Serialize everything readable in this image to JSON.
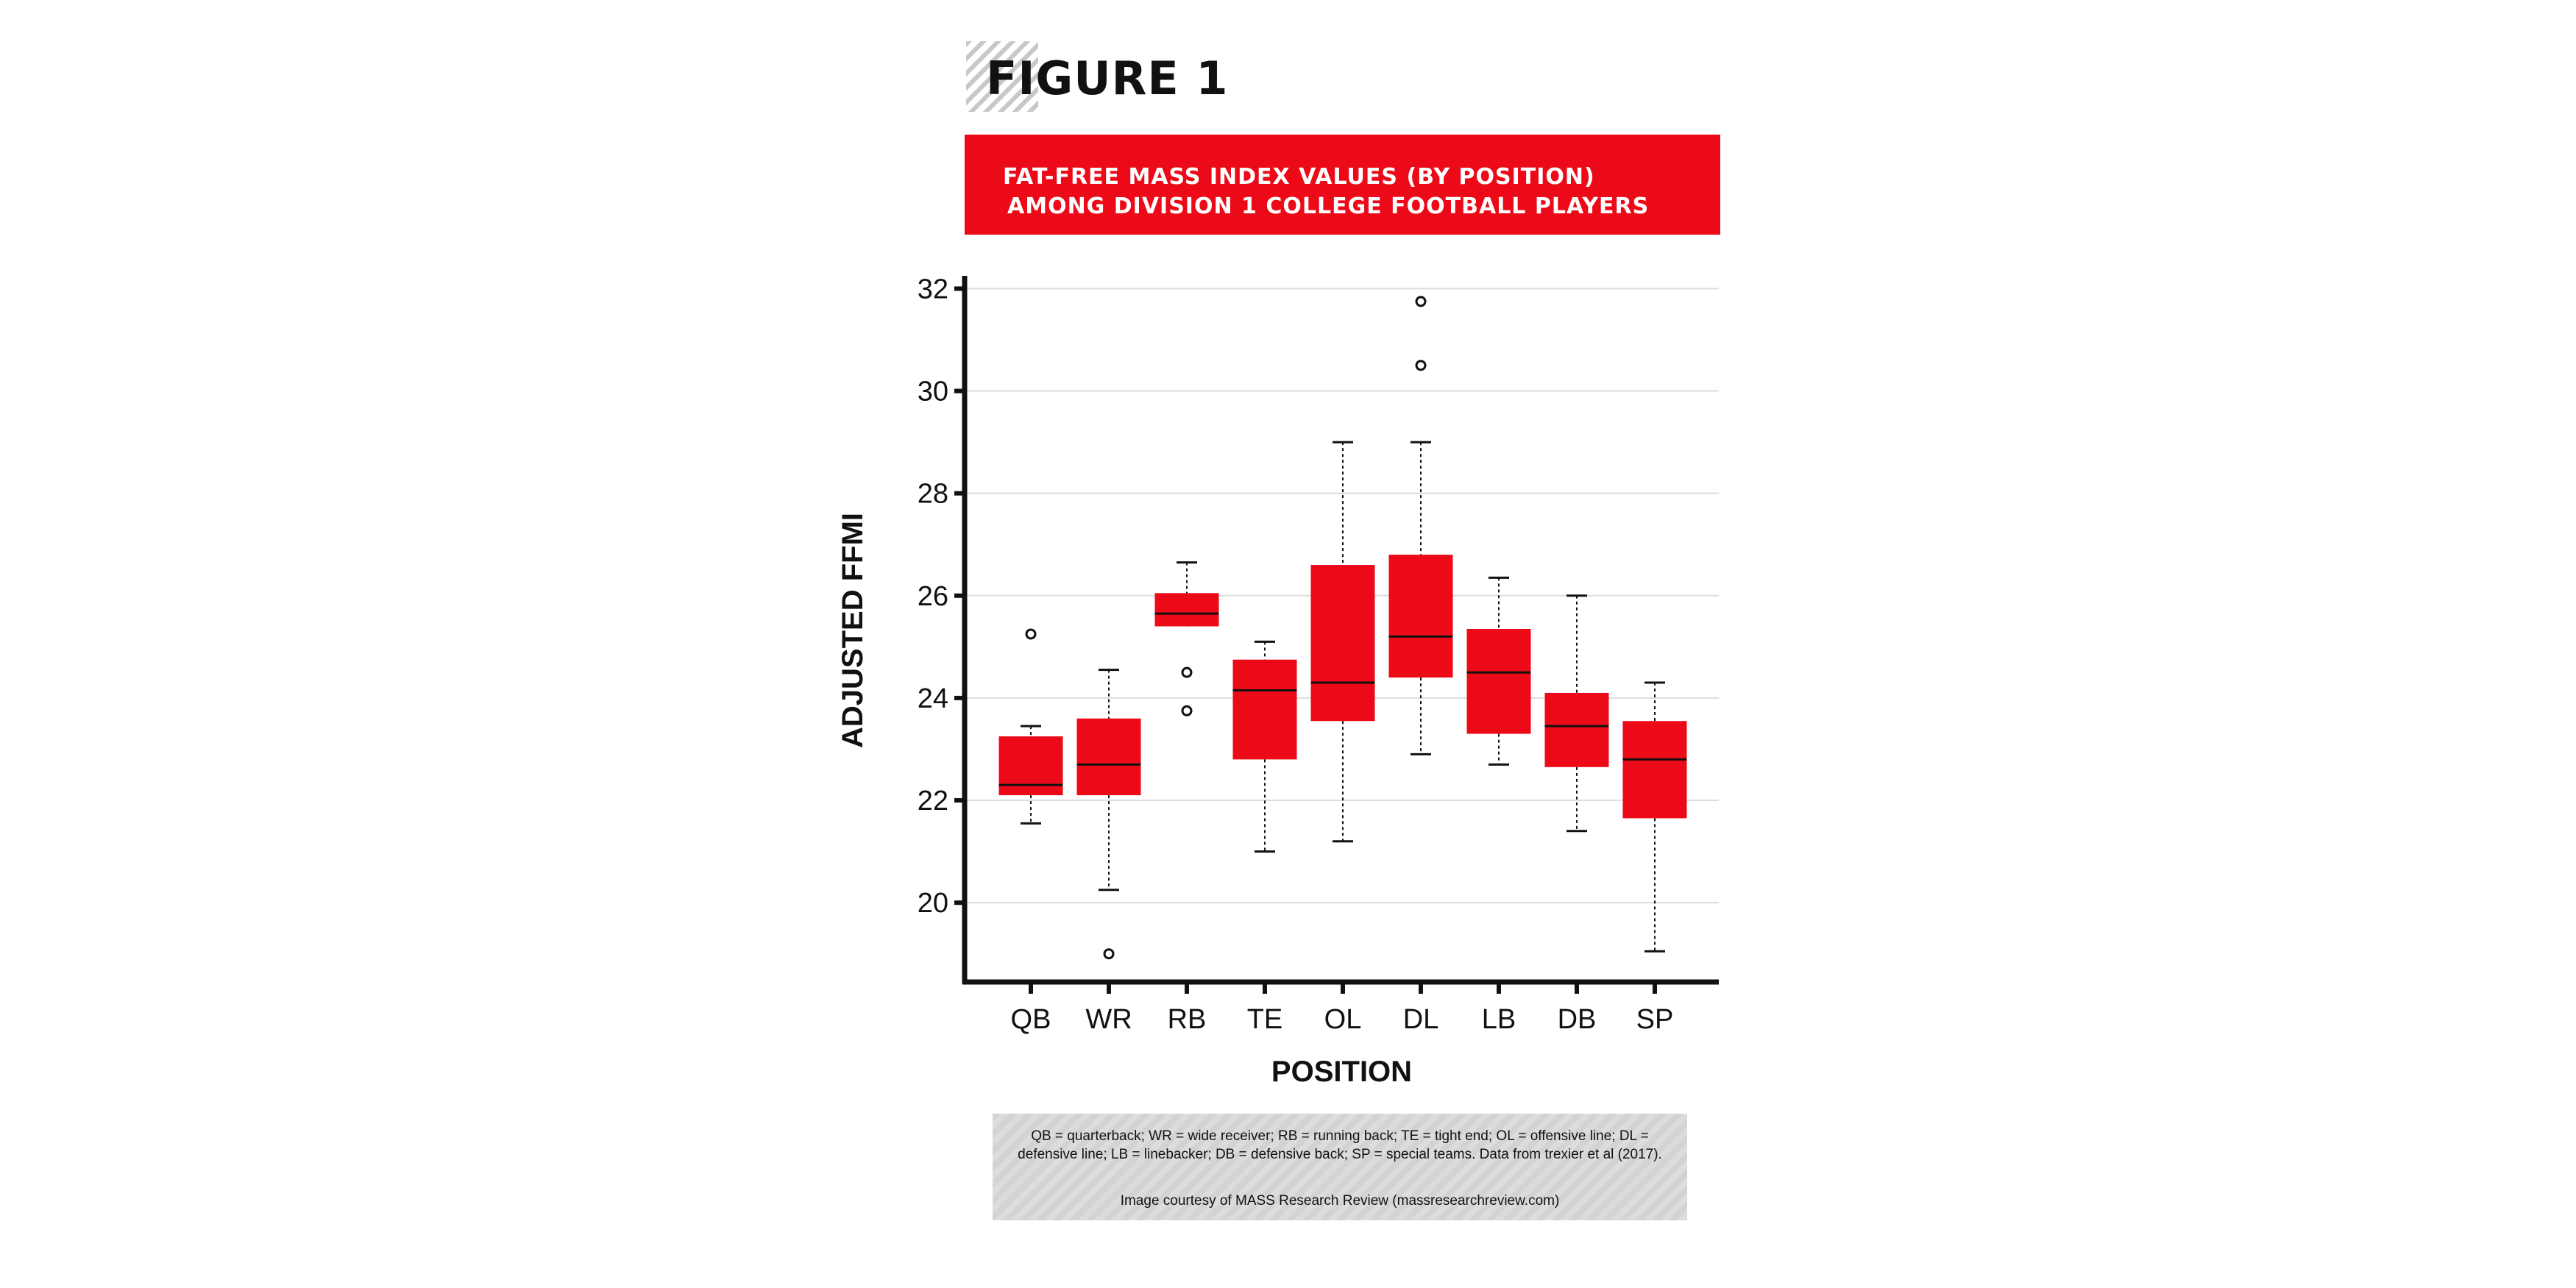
{
  "figure_label": "FIGURE 1",
  "banner": {
    "line1": "FAT-FREE MASS INDEX VALUES (BY POSITION)",
    "line2": "AMONG DIVISION 1 COLLEGE FOOTBALL PLAYERS"
  },
  "caption": {
    "text": "QB = quarterback; WR = wide receiver; RB = running back; TE = tight end; OL =  offensive line; DL = defensive line; LB = linebacker; DB = defensive back;  SP = special teams. Data from trexier et al (2017).",
    "credit": "Image courtesy of MASS Research Review (massresearchreview.com)"
  },
  "colors": {
    "box": "#ec0a18",
    "banner": "#ec0a18",
    "grid": "#dddddd",
    "axis": "#111111"
  },
  "chart_data": {
    "type": "box",
    "xlabel": "POSITION",
    "ylabel": "ADJUSTED FFMI",
    "ylim": [
      18.45,
      32.25
    ],
    "yticks": [
      20,
      22,
      24,
      26,
      28,
      30,
      32
    ],
    "grid": "horizontal",
    "categories": [
      "QB",
      "WR",
      "RB",
      "TE",
      "OL",
      "DL",
      "LB",
      "DB",
      "SP"
    ],
    "boxes": [
      {
        "min": 21.55,
        "q1": 22.1,
        "median": 22.3,
        "q3": 23.25,
        "max": 23.45,
        "outliers": [
          25.25
        ]
      },
      {
        "min": 20.25,
        "q1": 22.1,
        "median": 22.7,
        "q3": 23.6,
        "max": 24.55,
        "outliers": [
          19.0
        ]
      },
      {
        "min": 25.4,
        "q1": 25.4,
        "median": 25.65,
        "q3": 26.05,
        "max": 26.65,
        "outliers": [
          24.5,
          23.75
        ]
      },
      {
        "min": 21.0,
        "q1": 22.8,
        "median": 24.15,
        "q3": 24.75,
        "max": 25.1,
        "outliers": []
      },
      {
        "min": 21.2,
        "q1": 23.55,
        "median": 24.3,
        "q3": 26.6,
        "max": 29.0,
        "outliers": []
      },
      {
        "min": 22.9,
        "q1": 24.4,
        "median": 25.2,
        "q3": 26.8,
        "max": 29.0,
        "outliers": [
          30.5,
          31.75
        ]
      },
      {
        "min": 22.7,
        "q1": 23.3,
        "median": 24.5,
        "q3": 25.35,
        "max": 26.35,
        "outliers": []
      },
      {
        "min": 21.4,
        "q1": 22.65,
        "median": 23.45,
        "q3": 24.1,
        "max": 26.0,
        "outliers": []
      },
      {
        "min": 19.05,
        "q1": 21.65,
        "median": 22.8,
        "q3": 23.55,
        "max": 24.3,
        "outliers": []
      }
    ]
  }
}
